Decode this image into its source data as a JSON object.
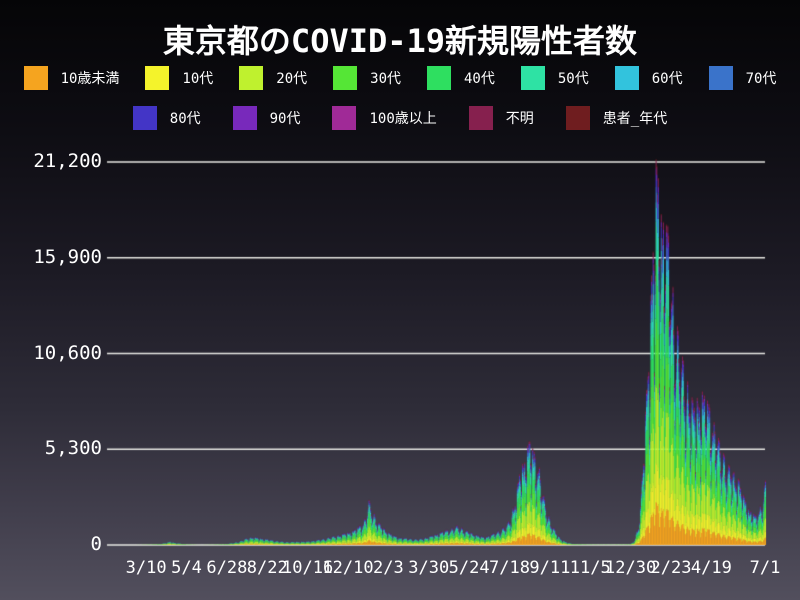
{
  "header": {
    "title": "東京都のCOVID-19新規陽性者数"
  },
  "colors": {
    "background_top": "#050507",
    "background_bottom": "#524f5d",
    "gridline": "#e8e8e4",
    "text": "#ffffff"
  },
  "chart_data": {
    "type": "area",
    "stacked": true,
    "title": "東京都のCOVID-19新規陽性者数",
    "xlabel": "",
    "ylabel": "",
    "grid": "horizontal-lines-on",
    "legend_position": "top-two-rows",
    "ylim": [
      0,
      21200
    ],
    "y_ticks": [
      {
        "value": 0,
        "label": "0"
      },
      {
        "value": 5300,
        "label": "5,300"
      },
      {
        "value": 10600,
        "label": "10,600"
      },
      {
        "value": 15900,
        "label": "15,900"
      },
      {
        "value": 21200,
        "label": "21,200"
      }
    ],
    "x_range": {
      "start": "2020-01-29",
      "end": "2022-07-01"
    },
    "x_ticks": [
      {
        "date": "2020-03-10",
        "label": "3/10"
      },
      {
        "date": "2020-05-04",
        "label": "5/4"
      },
      {
        "date": "2020-06-28",
        "label": "6/28"
      },
      {
        "date": "2020-08-22",
        "label": "8/22"
      },
      {
        "date": "2020-10-16",
        "label": "10/16"
      },
      {
        "date": "2020-12-10",
        "label": "12/10"
      },
      {
        "date": "2021-02-03",
        "label": "2/3"
      },
      {
        "date": "2021-03-30",
        "label": "3/30"
      },
      {
        "date": "2021-05-24",
        "label": "5/24"
      },
      {
        "date": "2021-07-18",
        "label": "7/18"
      },
      {
        "date": "2021-09-11",
        "label": "9/11"
      },
      {
        "date": "2021-11-05",
        "label": "11/5"
      },
      {
        "date": "2021-12-30",
        "label": "12/30"
      },
      {
        "date": "2022-02-23",
        "label": "2/23"
      },
      {
        "date": "2022-04-19",
        "label": "4/19"
      },
      {
        "date": "2022-07-01",
        "label": "7/1"
      }
    ],
    "age_groups": [
      {
        "label": "10歳未満",
        "color": "#f5a41f",
        "share_of_total": 0.11
      },
      {
        "label": "10代",
        "color": "#f4f32b",
        "share_of_total": 0.1
      },
      {
        "label": "20代",
        "color": "#bff12e",
        "share_of_total": 0.2
      },
      {
        "label": "30代",
        "color": "#55e636",
        "share_of_total": 0.17
      },
      {
        "label": "40代",
        "color": "#2edf60",
        "share_of_total": 0.15
      },
      {
        "label": "50代",
        "color": "#2ee2a4",
        "share_of_total": 0.1
      },
      {
        "label": "60代",
        "color": "#32c3dd",
        "share_of_total": 0.05
      },
      {
        "label": "70代",
        "color": "#3a73ca",
        "share_of_total": 0.04
      },
      {
        "label": "80代",
        "color": "#4335c6",
        "share_of_total": 0.03
      },
      {
        "label": "90代",
        "color": "#7829bb",
        "share_of_total": 0.015
      },
      {
        "label": "100歳以上",
        "color": "#a02a97",
        "share_of_total": 0.002
      },
      {
        "label": "不明",
        "color": "#86204e",
        "share_of_total": 0.02
      },
      {
        "label": "患者_年代",
        "color": "#6f1d1f",
        "share_of_total": 0.003
      }
    ],
    "envelope_daily_total": [
      {
        "d": "2020-01-29",
        "v": 1
      },
      {
        "d": "2020-02-20",
        "v": 3
      },
      {
        "d": "2020-03-10",
        "v": 18
      },
      {
        "d": "2020-03-28",
        "v": 64
      },
      {
        "d": "2020-04-11",
        "v": 197
      },
      {
        "d": "2020-04-30",
        "v": 60
      },
      {
        "d": "2020-05-23",
        "v": 6
      },
      {
        "d": "2020-06-24",
        "v": 55
      },
      {
        "d": "2020-07-23",
        "v": 366
      },
      {
        "d": "2020-08-01",
        "v": 472
      },
      {
        "d": "2020-08-20",
        "v": 340
      },
      {
        "d": "2020-09-15",
        "v": 180
      },
      {
        "d": "2020-10-15",
        "v": 200
      },
      {
        "d": "2020-11-18",
        "v": 490
      },
      {
        "d": "2020-12-17",
        "v": 820
      },
      {
        "d": "2020-12-31",
        "v": 1353
      },
      {
        "d": "2021-01-07",
        "v": 2520
      },
      {
        "d": "2021-01-25",
        "v": 1030
      },
      {
        "d": "2021-02-15",
        "v": 440
      },
      {
        "d": "2021-03-15",
        "v": 330
      },
      {
        "d": "2021-04-15",
        "v": 730
      },
      {
        "d": "2021-05-08",
        "v": 1120
      },
      {
        "d": "2021-06-13",
        "v": 440
      },
      {
        "d": "2021-07-14",
        "v": 1150
      },
      {
        "d": "2021-07-31",
        "v": 4060
      },
      {
        "d": "2021-08-13",
        "v": 5900
      },
      {
        "d": "2021-08-26",
        "v": 4700
      },
      {
        "d": "2021-09-15",
        "v": 1050
      },
      {
        "d": "2021-10-10",
        "v": 80
      },
      {
        "d": "2021-11-10",
        "v": 22
      },
      {
        "d": "2021-12-08",
        "v": 20
      },
      {
        "d": "2021-12-28",
        "v": 45
      },
      {
        "d": "2022-01-06",
        "v": 640
      },
      {
        "d": "2022-01-15",
        "v": 4560
      },
      {
        "d": "2022-01-22",
        "v": 11220
      },
      {
        "d": "2022-02-02",
        "v": 21562
      },
      {
        "d": "2022-02-10",
        "v": 18900
      },
      {
        "d": "2022-02-18",
        "v": 17860
      },
      {
        "d": "2022-03-01",
        "v": 12800
      },
      {
        "d": "2022-03-15",
        "v": 9500
      },
      {
        "d": "2022-03-25",
        "v": 8000
      },
      {
        "d": "2022-04-06",
        "v": 8600
      },
      {
        "d": "2022-04-16",
        "v": 7900
      },
      {
        "d": "2022-04-28",
        "v": 6000
      },
      {
        "d": "2022-05-12",
        "v": 4500
      },
      {
        "d": "2022-05-25",
        "v": 3800
      },
      {
        "d": "2022-06-08",
        "v": 2100
      },
      {
        "d": "2022-06-18",
        "v": 1650
      },
      {
        "d": "2022-06-25",
        "v": 2300
      },
      {
        "d": "2022-07-01",
        "v": 3620
      }
    ],
    "weekday_factors": [
      0.78,
      0.52,
      0.72,
      0.95,
      1.0,
      0.98,
      0.92
    ],
    "noise_amp": 0.1
  }
}
